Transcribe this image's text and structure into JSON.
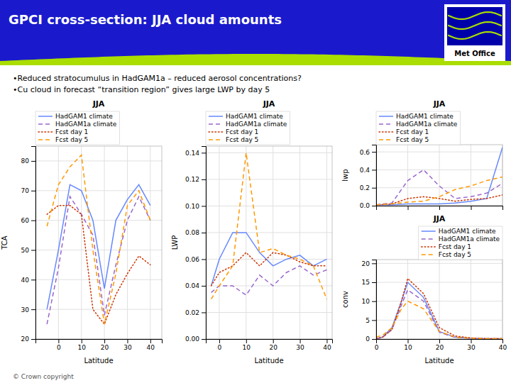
{
  "title": "GPCI cross-section: JJA cloud amounts",
  "annotations": [
    "•Reduced stratocumulus in HadGAM1a – reduced aerosol concentrations?",
    "•Cu cloud in forecast “transition region” gives large LWP by day 5",
    "Met Office",
    "© Crown copyright"
  ],
  "chart_data": [
    {
      "type": "line",
      "title": "JJA",
      "xlabel": "Latitude",
      "ylabel": "TCA",
      "x": [
        -5,
        0,
        5,
        10,
        15,
        20,
        25,
        30,
        35,
        40
      ],
      "xlim": [
        -10,
        45
      ],
      "ylim": [
        20,
        85
      ],
      "xticks": [
        0,
        10,
        20,
        30,
        40
      ],
      "yticks": [
        20,
        30,
        40,
        50,
        60,
        70,
        80
      ],
      "grid": true,
      "legend": "upper left",
      "series": [
        {
          "name": "HadGAM1 climate",
          "color": "#6688ff",
          "line_style": "solid",
          "values": [
            30,
            50,
            72,
            70,
            60,
            37,
            60,
            67,
            72,
            65
          ]
        },
        {
          "name": "HadGAM1a climate",
          "color": "#9966cc",
          "line_style": "dashed",
          "values": [
            25,
            44,
            68,
            62,
            55,
            28,
            45,
            60,
            68,
            60
          ]
        },
        {
          "name": "Fcst day 1",
          "color": "#cc3300",
          "line_style": "dotted",
          "values": [
            62,
            65,
            65,
            62,
            30,
            25,
            35,
            42,
            48,
            45
          ]
        },
        {
          "name": "Fcst day 5",
          "color": "#ff9900",
          "line_style": "dashed",
          "values": [
            58,
            72,
            78,
            82,
            50,
            25,
            42,
            65,
            70,
            60
          ]
        }
      ]
    },
    {
      "type": "line",
      "title": "JJA",
      "xlabel": "Latitude",
      "ylabel": "LWP",
      "x": [
        -3,
        0,
        5,
        10,
        15,
        20,
        25,
        30,
        35,
        40
      ],
      "xlim": [
        -5,
        42
      ],
      "ylim": [
        0.0,
        0.145
      ],
      "xticks": [
        0,
        10,
        20,
        30,
        40
      ],
      "yticks": [
        {
          "value": 0,
          "label": "0.00"
        },
        0.02,
        0.04,
        0.06,
        0.08,
        {
          "value": 0.1,
          "label": "0.10"
        },
        0.12,
        0.14
      ],
      "grid": true,
      "legend": "upper left",
      "series": [
        {
          "name": "HadGAM1 climate",
          "color": "#6688ff",
          "line_style": "solid",
          "values": [
            0.04,
            0.06,
            0.08,
            0.08,
            0.065,
            0.055,
            0.06,
            0.063,
            0.055,
            0.06
          ]
        },
        {
          "name": "HadGAM1a climate",
          "color": "#9966cc",
          "line_style": "dashed",
          "values": [
            0.035,
            0.04,
            0.04,
            0.033,
            0.048,
            0.04,
            0.05,
            0.055,
            0.048,
            0.052
          ]
        },
        {
          "name": "Fcst day 1",
          "color": "#cc3300",
          "line_style": "dotted",
          "values": [
            0.04,
            0.05,
            0.055,
            0.065,
            0.055,
            0.065,
            0.063,
            0.058,
            0.055,
            0.055
          ]
        },
        {
          "name": "Fcst day 5",
          "color": "#ff9900",
          "line_style": "dashed",
          "values": [
            0.03,
            0.04,
            0.055,
            0.14,
            0.065,
            0.068,
            0.063,
            0.06,
            0.055,
            0.03
          ]
        }
      ]
    },
    {
      "type": "line",
      "title": "JJA",
      "ylabel": "lwp",
      "x": [
        0,
        5,
        10,
        15,
        20,
        25,
        30,
        35,
        40
      ],
      "xlim": [
        0,
        40
      ],
      "ylim": [
        0.0,
        0.68
      ],
      "xticks": [
        0,
        10,
        20,
        30,
        40
      ],
      "yticks": [
        {
          "value": 0,
          "label": "0.0"
        },
        0.2,
        0.4,
        0.6
      ],
      "tick_labels": "y",
      "grid": true,
      "legend": "upper left",
      "series": [
        {
          "name": "HadGAM1 climate",
          "color": "#6688ff",
          "line_style": "solid",
          "values": [
            0.01,
            0.01,
            0.02,
            0.02,
            0.02,
            0.03,
            0.05,
            0.08,
            0.65
          ]
        },
        {
          "name": "HadGAM1a climate",
          "color": "#9966cc",
          "line_style": "dashed",
          "values": [
            0.01,
            0.03,
            0.28,
            0.4,
            0.22,
            0.08,
            0.1,
            0.14,
            0.25
          ]
        },
        {
          "name": "Fcst day 1",
          "color": "#cc3300",
          "line_style": "dotted",
          "values": [
            0.01,
            0.02,
            0.08,
            0.1,
            0.08,
            0.05,
            0.07,
            0.08,
            0.12
          ]
        },
        {
          "name": "Fcst day 5",
          "color": "#ff9900",
          "line_style": "dashed",
          "values": [
            0.01,
            0.02,
            0.04,
            0.05,
            0.1,
            0.18,
            0.22,
            0.28,
            0.32
          ]
        }
      ]
    },
    {
      "type": "line",
      "title": "JJA",
      "xlabel": "Latitude",
      "ylabel": "conv",
      "x": [
        0,
        2,
        5,
        8,
        10,
        15,
        20,
        25,
        30,
        35,
        40
      ],
      "xlim": [
        0,
        40
      ],
      "ylim": [
        0,
        21
      ],
      "xticks": [
        0,
        10,
        20,
        30,
        40
      ],
      "yticks": [
        0,
        5,
        10,
        15,
        20
      ],
      "grid": true,
      "legend": "upper right",
      "series": [
        {
          "name": "HadGAM1 climate",
          "color": "#6688ff",
          "line_style": "solid",
          "values": [
            0.1,
            0.5,
            3,
            10,
            15,
            11,
            2,
            0.5,
            0.2,
            0.1,
            0.1
          ]
        },
        {
          "name": "HadGAM1a climate",
          "color": "#9966cc",
          "line_style": "dashed",
          "values": [
            0.1,
            0.4,
            2.5,
            9,
            13,
            10,
            1.8,
            0.4,
            0.2,
            0.1,
            0.1
          ]
        },
        {
          "name": "Fcst day 1",
          "color": "#cc3300",
          "line_style": "dotted",
          "values": [
            0.1,
            0.5,
            2.5,
            10,
            16,
            12,
            3,
            0.8,
            0.3,
            0.1,
            0.1
          ]
        },
        {
          "name": "Fcst day 5",
          "color": "#ff9900",
          "line_style": "dashed",
          "values": [
            0.5,
            1.0,
            3,
            8,
            10,
            8,
            2,
            0.5,
            0.2,
            0.1,
            0.1
          ]
        }
      ]
    }
  ]
}
